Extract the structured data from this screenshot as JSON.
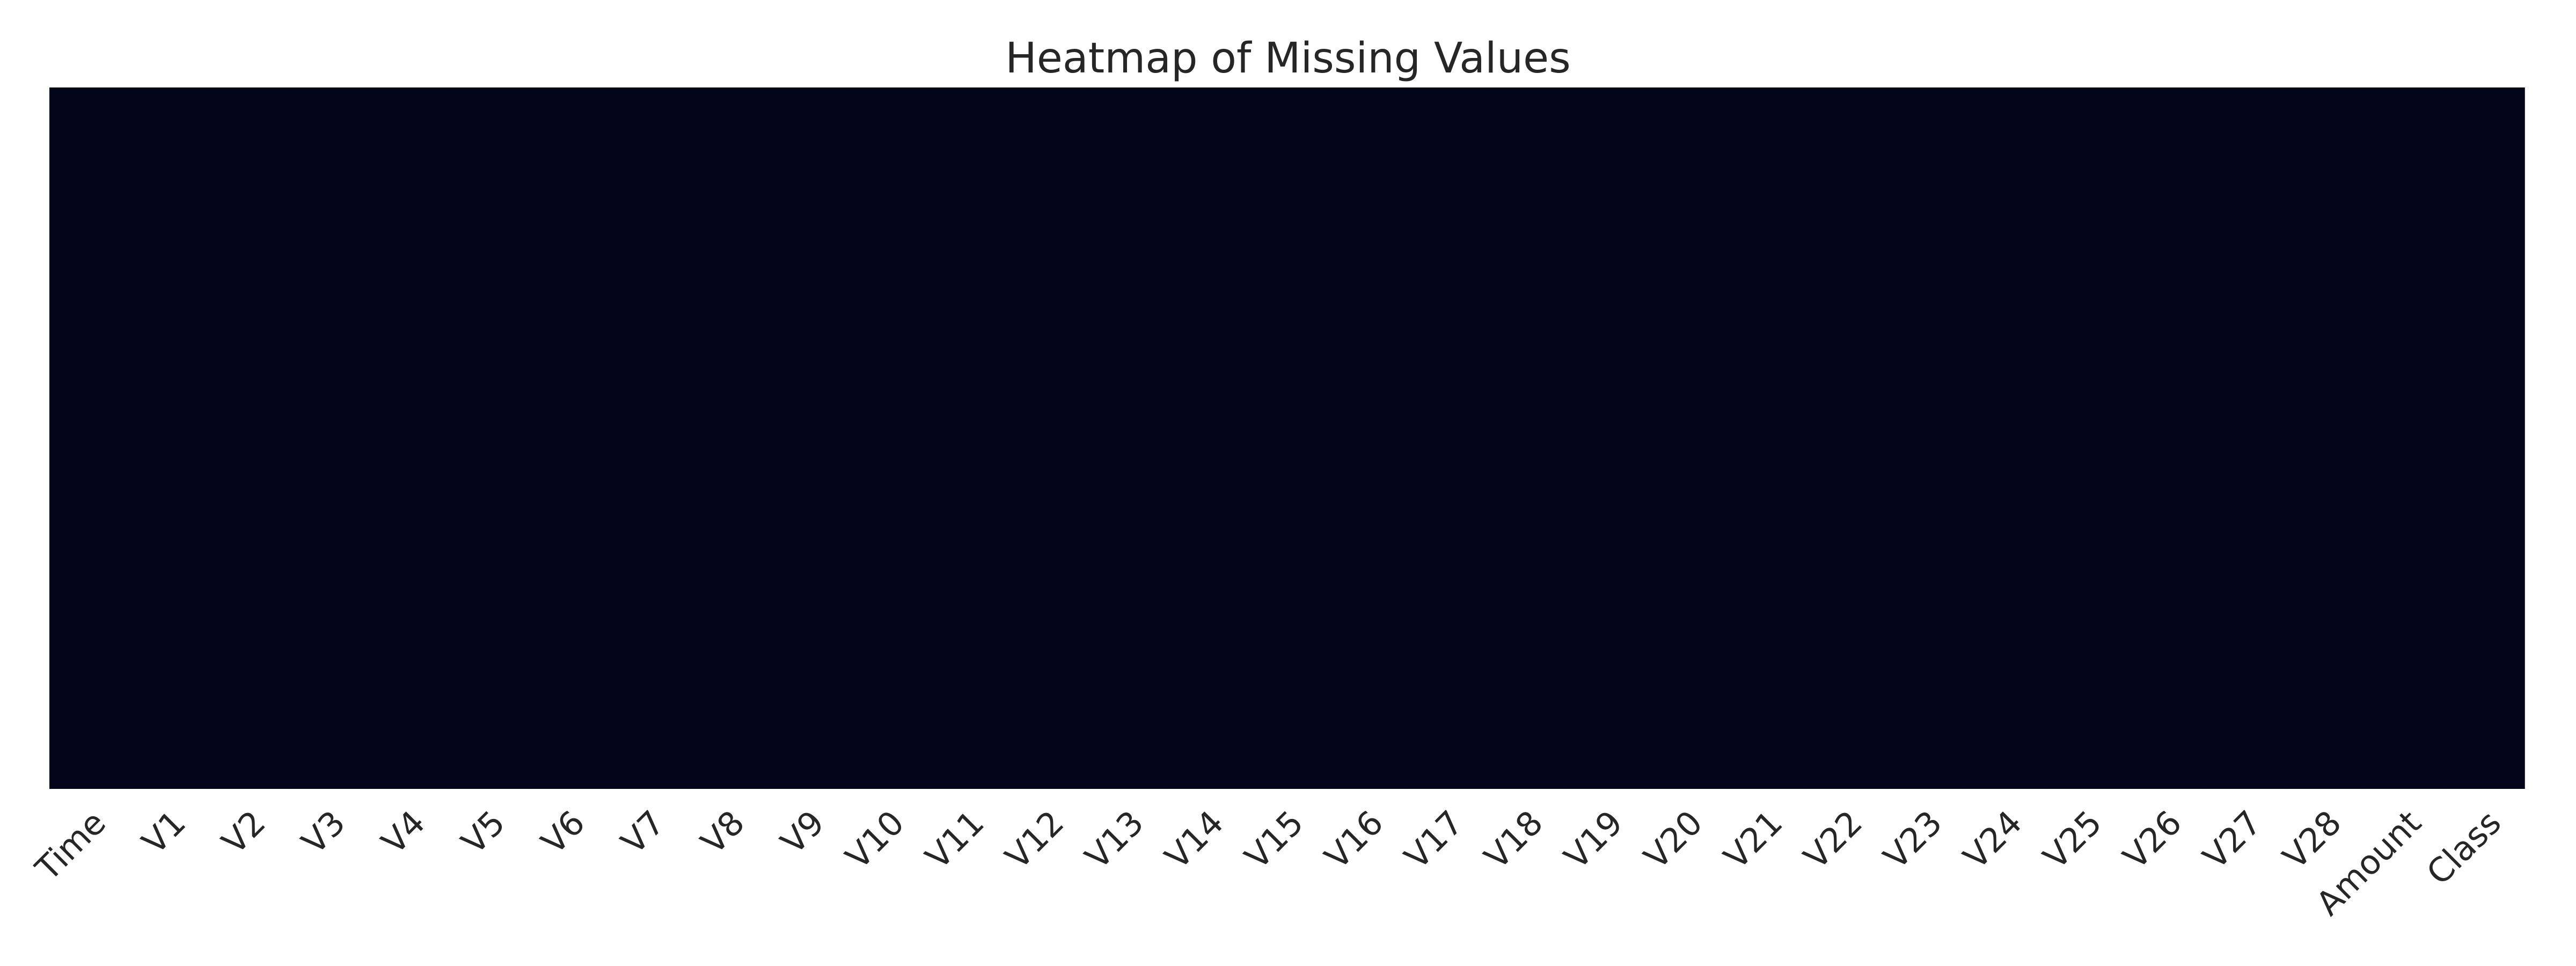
{
  "chart_data": {
    "type": "heatmap",
    "title": "Heatmap of Missing Values",
    "xlabel": "",
    "ylabel": "",
    "columns": [
      "Time",
      "V1",
      "V2",
      "V3",
      "V4",
      "V5",
      "V6",
      "V7",
      "V8",
      "V9",
      "V10",
      "V11",
      "V12",
      "V13",
      "V14",
      "V15",
      "V16",
      "V17",
      "V18",
      "V19",
      "V20",
      "V21",
      "V22",
      "V23",
      "V24",
      "V25",
      "V26",
      "V27",
      "V28",
      "Amount",
      "Class"
    ],
    "missing_values": [
      0,
      0,
      0,
      0,
      0,
      0,
      0,
      0,
      0,
      0,
      0,
      0,
      0,
      0,
      0,
      0,
      0,
      0,
      0,
      0,
      0,
      0,
      0,
      0,
      0,
      0,
      0,
      0,
      0,
      0,
      0
    ],
    "y_ticks_shown": false,
    "colorbar_shown": false,
    "grid": false,
    "colors": {
      "not_missing": "#03051a",
      "text": "#262626",
      "background": "#ffffff"
    }
  }
}
